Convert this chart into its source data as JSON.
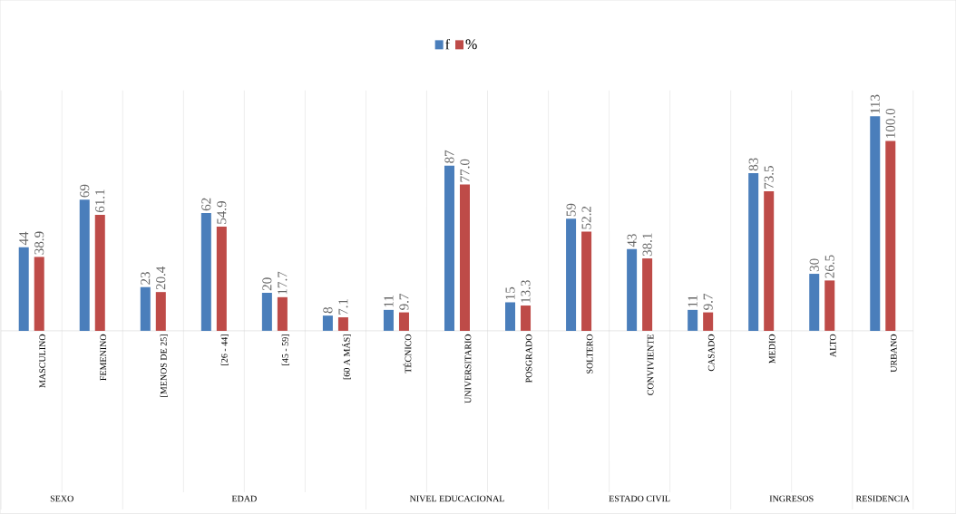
{
  "chart_data": {
    "type": "bar",
    "categories": [
      "MASCULINO",
      "FEMENINO",
      "[MENOS DE 25]",
      "[26 - 44]",
      "[45 - 59]",
      "[60 A MÁS]",
      "TÉCNICO",
      "UNIVERSITARIO",
      "POSGRADO",
      "SOLTERO",
      "CONVIVIENTE",
      "CASADO",
      "MEDIO",
      "ALTO",
      "URBANO"
    ],
    "series": [
      {
        "name": "f",
        "color": "#4a7ebb",
        "values": [
          44,
          69,
          23,
          62,
          20,
          8,
          11,
          87,
          15,
          59,
          43,
          11,
          83,
          30,
          113
        ],
        "value_labels": [
          "44",
          "69",
          "23",
          "62",
          "20",
          "8",
          "11",
          "87",
          "15",
          "59",
          "43",
          "11",
          "83",
          "30",
          "113"
        ]
      },
      {
        "name": "%",
        "color": "#be4b48",
        "values": [
          38.9,
          61.1,
          20.4,
          54.9,
          17.7,
          7.1,
          9.7,
          77.0,
          13.3,
          52.2,
          38.1,
          9.7,
          73.5,
          26.5,
          100.0
        ],
        "value_labels": [
          "38.9",
          "61.1",
          "20.4",
          "54.9",
          "17.7",
          "7.1",
          "9.7",
          "77.0",
          "13.3",
          "52.2",
          "38.1",
          "9.7",
          "73.5",
          "26.5",
          "100.0"
        ]
      }
    ],
    "annotations": [
      "SEXO",
      "EDAD",
      "NIVEL EDUCACIONAL",
      "ESTADO CIVIL",
      "INGRESOS",
      "RESIDENCIA"
    ],
    "legend": "top",
    "grid": "x"
  }
}
